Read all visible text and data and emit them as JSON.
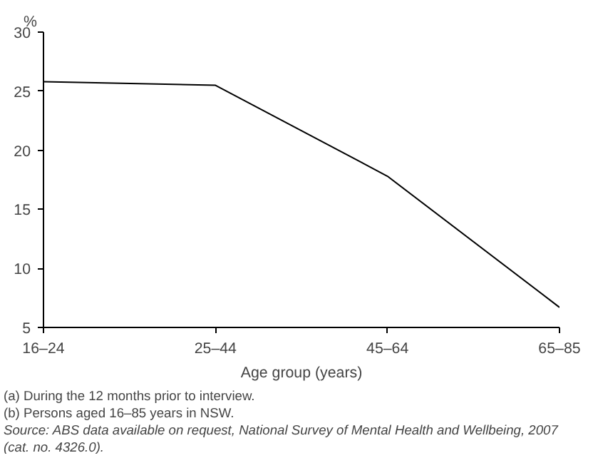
{
  "chart_data": {
    "type": "line",
    "xlabel": "Age group (years)",
    "ylabel": "%",
    "categories": [
      "16–24",
      "25–44",
      "45–64",
      "65–85"
    ],
    "series": [
      {
        "color": "#000000",
        "values": [
          25.8,
          25.5,
          17.8,
          6.7
        ]
      }
    ],
    "ylim": [
      5,
      30
    ],
    "yticks": [
      5,
      10,
      15,
      20,
      25,
      30
    ],
    "grid": false,
    "annotations": [
      "(a) During the 12 months prior to interview.",
      "(b) Persons aged 16–85 years in NSW.",
      "Source: ABS data available on request, National Survey of Mental Health and Wellbeing, 2007",
      "(cat. no. 4326.0)."
    ]
  }
}
